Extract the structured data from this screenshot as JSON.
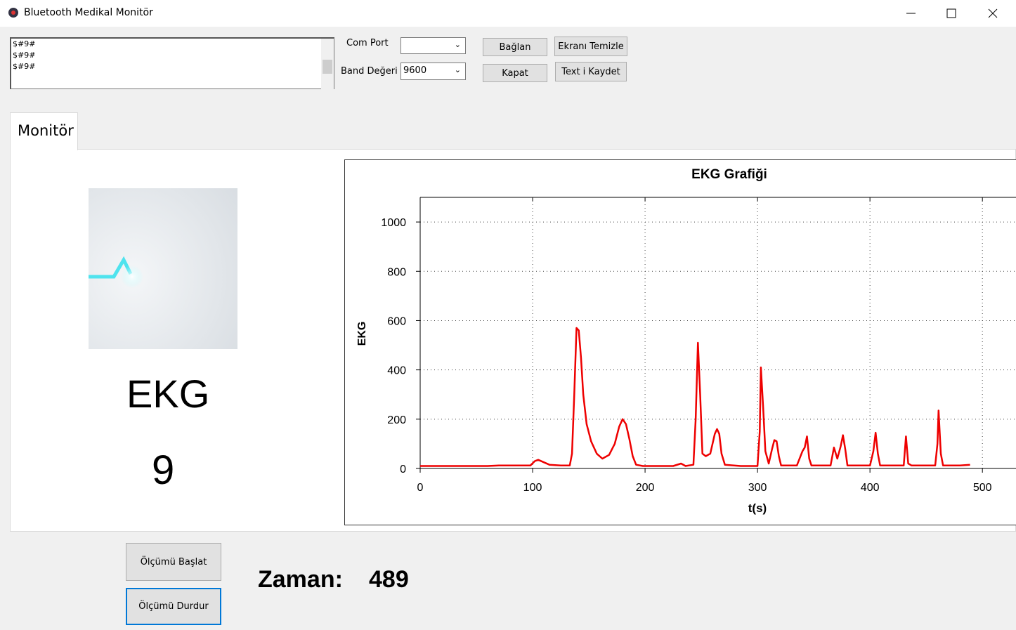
{
  "window": {
    "title": "Bluetooth Medikal Monitör"
  },
  "log": {
    "lines": [
      "$#9#",
      "$#9#",
      "$#9#"
    ]
  },
  "connection": {
    "com_port_label": "Com Port",
    "baud_label": "Band Değeri",
    "baud_value": "9600",
    "buttons": [
      "Bağlan",
      "Kapat",
      "Ekranı Temizle",
      "Text i Kaydet"
    ]
  },
  "tab": "Monitör",
  "sensor": {
    "name": "EKG",
    "value": 9
  },
  "chart_data": {
    "type": "line",
    "title": "EKG Grafiği",
    "x_label": "t(s)",
    "y_label": "EKG",
    "xlim": [
      0,
      528
    ],
    "ylim": [
      0,
      1100
    ],
    "xticks": [
      0,
      100,
      200,
      300,
      400,
      500
    ],
    "yticks": [
      0,
      200,
      400,
      600,
      800,
      1000
    ],
    "grid": true,
    "x": [
      0,
      20,
      40,
      60,
      70,
      90,
      98,
      102,
      105,
      110,
      115,
      125,
      133,
      135,
      137,
      139,
      141,
      143,
      145,
      148,
      152,
      157,
      162,
      168,
      173,
      177,
      180,
      183,
      186,
      189,
      192,
      198,
      210,
      225,
      232,
      236,
      243,
      245,
      247,
      249,
      251,
      254,
      258,
      262,
      264,
      266,
      268,
      271,
      285,
      300,
      302,
      303,
      305,
      307,
      310,
      313,
      315,
      317,
      319,
      321,
      335,
      340,
      342,
      344,
      346,
      348,
      365,
      368,
      371,
      374,
      376,
      378,
      380,
      400,
      403,
      405,
      407,
      409,
      430,
      432,
      434,
      437,
      458,
      460,
      461,
      463,
      465,
      480,
      489
    ],
    "series": [
      {
        "color": "#ee0000",
        "values": [
          10,
          10,
          10,
          10,
          12,
          12,
          12,
          30,
          35,
          25,
          15,
          12,
          12,
          60,
          300,
          570,
          560,
          450,
          300,
          180,
          110,
          60,
          40,
          55,
          100,
          170,
          200,
          180,
          120,
          50,
          15,
          10,
          10,
          10,
          20,
          10,
          15,
          200,
          510,
          300,
          60,
          50,
          60,
          140,
          160,
          140,
          60,
          15,
          10,
          10,
          150,
          410,
          250,
          70,
          20,
          80,
          115,
          110,
          50,
          12,
          12,
          70,
          85,
          130,
          40,
          12,
          12,
          85,
          40,
          90,
          135,
          80,
          12,
          12,
          70,
          145,
          60,
          12,
          12,
          130,
          20,
          12,
          12,
          100,
          235,
          60,
          12,
          12,
          15
        ]
      }
    ]
  },
  "controls": {
    "buttons": [
      "Ölçümü Başlat",
      "Ölçümü Durdur"
    ],
    "time_label": "Zaman:",
    "time_value": 489
  }
}
